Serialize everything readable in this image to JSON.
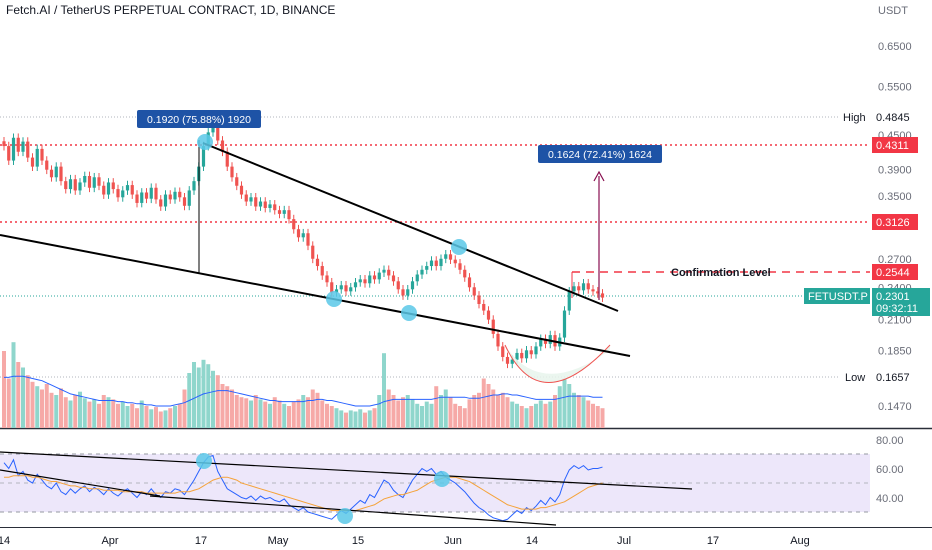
{
  "header": {
    "title": "Fetch.AI / TetherUS PERPETUAL CONTRACT, 1D, BINANCE",
    "currency": "USDT"
  },
  "colors": {
    "up": "#26a69a",
    "down": "#ef5350",
    "ma": "#2962ff",
    "rsi": "#2962ff",
    "rsi_ma": "#f5a33a",
    "level_red": "#f23645",
    "badge_blue": "#1e53a6",
    "rsi_band": "#ede7fa"
  },
  "chart_data": [
    {
      "type": "candlestick",
      "title": "Fetch.AI / TetherUS PERPETUAL CONTRACT, 1D, BINANCE",
      "y_scale": "log",
      "yticks": [
        "0.6500",
        "0.5500",
        "0.4500",
        "0.3900",
        "0.3500",
        "0.2700",
        "0.2400",
        "0.2100",
        "0.1850",
        "0.1470"
      ],
      "xticks": [
        "14",
        "Apr",
        "17",
        "May",
        "15",
        "Jun",
        "14",
        "Jul",
        "17",
        "Aug"
      ],
      "price_labels": {
        "high": {
          "label": "High",
          "value": "0.4845"
        },
        "low": {
          "label": "Low",
          "value": "0.1657"
        },
        "level1": "0.4311",
        "level2": "0.3126",
        "confirmation": "0.2544",
        "last": {
          "symbol": "FETUSDT.P",
          "value": "0.2301",
          "countdown": "09:32:11"
        }
      },
      "annotations": {
        "measure1": "0.1920 (75.88%) 1920",
        "measure2": "0.1624 (72.41%) 1624",
        "confirmation_label": "Confirmation Level"
      },
      "close": [
        0.43,
        0.405,
        0.445,
        0.42,
        0.438,
        0.41,
        0.395,
        0.425,
        0.405,
        0.39,
        0.378,
        0.395,
        0.372,
        0.36,
        0.375,
        0.358,
        0.37,
        0.38,
        0.362,
        0.378,
        0.365,
        0.352,
        0.37,
        0.36,
        0.348,
        0.358,
        0.366,
        0.352,
        0.34,
        0.355,
        0.346,
        0.362,
        0.345,
        0.335,
        0.352,
        0.345,
        0.356,
        0.348,
        0.336,
        0.358,
        0.372,
        0.395,
        0.43,
        0.455,
        0.47,
        0.44,
        0.42,
        0.395,
        0.378,
        0.365,
        0.352,
        0.342,
        0.348,
        0.335,
        0.342,
        0.333,
        0.338,
        0.33,
        0.325,
        0.33,
        0.318,
        0.305,
        0.295,
        0.3,
        0.285,
        0.27,
        0.262,
        0.252,
        0.245,
        0.235,
        0.238,
        0.242,
        0.236,
        0.24,
        0.245,
        0.248,
        0.244,
        0.252,
        0.248,
        0.255,
        0.258,
        0.252,
        0.246,
        0.238,
        0.232,
        0.238,
        0.246,
        0.253,
        0.258,
        0.262,
        0.268,
        0.262,
        0.27,
        0.275,
        0.269,
        0.265,
        0.258,
        0.25,
        0.24,
        0.232,
        0.224,
        0.218,
        0.21,
        0.198,
        0.188,
        0.18,
        0.175,
        0.178,
        0.183,
        0.179,
        0.185,
        0.182,
        0.188,
        0.194,
        0.19,
        0.197,
        0.188,
        0.195,
        0.218,
        0.236,
        0.241,
        0.237,
        0.244,
        0.238,
        0.236,
        0.234,
        0.23
      ],
      "volume": [
        0.7,
        0.45,
        0.78,
        0.6,
        0.55,
        0.48,
        0.42,
        0.38,
        0.35,
        0.4,
        0.32,
        0.3,
        0.36,
        0.28,
        0.25,
        0.3,
        0.33,
        0.27,
        0.24,
        0.26,
        0.22,
        0.3,
        0.28,
        0.26,
        0.22,
        0.24,
        0.2,
        0.22,
        0.18,
        0.25,
        0.2,
        0.17,
        0.19,
        0.15,
        0.16,
        0.18,
        0.2,
        0.22,
        0.35,
        0.5,
        0.6,
        0.55,
        0.62,
        0.58,
        0.52,
        0.48,
        0.4,
        0.38,
        0.35,
        0.3,
        0.28,
        0.27,
        0.25,
        0.3,
        0.26,
        0.24,
        0.22,
        0.28,
        0.25,
        0.22,
        0.2,
        0.24,
        0.26,
        0.3,
        0.28,
        0.35,
        0.32,
        0.25,
        0.22,
        0.2,
        0.18,
        0.16,
        0.14,
        0.16,
        0.15,
        0.17,
        0.14,
        0.16,
        0.18,
        0.3,
        0.68,
        0.35,
        0.3,
        0.25,
        0.28,
        0.3,
        0.26,
        0.22,
        0.2,
        0.24,
        0.22,
        0.38,
        0.3,
        0.35,
        0.28,
        0.22,
        0.2,
        0.18,
        0.26,
        0.3,
        0.32,
        0.45,
        0.4,
        0.35,
        0.3,
        0.32,
        0.28,
        0.24,
        0.22,
        0.2,
        0.18,
        0.2,
        0.22,
        0.25,
        0.22,
        0.24,
        0.3,
        0.38,
        0.45,
        0.4,
        0.32,
        0.3,
        0.28,
        0.25,
        0.22,
        0.2,
        0.18
      ],
      "volume_ma": [
        0.46,
        0.46,
        0.47,
        0.47,
        0.47,
        0.46,
        0.45,
        0.44,
        0.43,
        0.41,
        0.39,
        0.37,
        0.35,
        0.33,
        0.31,
        0.3,
        0.29,
        0.28,
        0.27,
        0.26,
        0.25,
        0.25,
        0.25,
        0.25,
        0.24,
        0.24,
        0.23,
        0.23,
        0.22,
        0.22,
        0.21,
        0.21,
        0.2,
        0.2,
        0.2,
        0.2,
        0.21,
        0.22,
        0.23,
        0.25,
        0.27,
        0.29,
        0.31,
        0.32,
        0.33,
        0.34,
        0.34,
        0.34,
        0.33,
        0.32,
        0.31,
        0.3,
        0.29,
        0.28,
        0.27,
        0.26,
        0.25,
        0.25,
        0.24,
        0.24,
        0.24,
        0.24,
        0.24,
        0.24,
        0.25,
        0.25,
        0.26,
        0.26,
        0.25,
        0.25,
        0.24,
        0.23,
        0.22,
        0.21,
        0.2,
        0.2,
        0.2,
        0.2,
        0.21,
        0.22,
        0.24,
        0.25,
        0.26,
        0.26,
        0.26,
        0.26,
        0.26,
        0.26,
        0.26,
        0.26,
        0.26,
        0.27,
        0.28,
        0.28,
        0.28,
        0.28,
        0.28,
        0.28,
        0.27,
        0.27,
        0.27,
        0.28,
        0.29,
        0.3,
        0.3,
        0.31,
        0.31,
        0.3,
        0.3,
        0.29,
        0.28,
        0.27,
        0.26,
        0.26,
        0.26,
        0.26,
        0.26,
        0.27,
        0.28,
        0.29,
        0.29,
        0.29,
        0.29,
        0.29,
        0.28,
        0.28,
        0.28
      ]
    },
    {
      "type": "line",
      "title": "",
      "y_scale": "linear",
      "ylim": [
        30,
        70
      ],
      "yticks": [
        "80.00",
        "60.00",
        "40.00"
      ],
      "series": [
        {
          "values": [
            64,
            60,
            66,
            55,
            58,
            52,
            50,
            56,
            52,
            48,
            46,
            50,
            44,
            42,
            46,
            43,
            46,
            48,
            44,
            47,
            45,
            42,
            46,
            43,
            41,
            44,
            46,
            43,
            40,
            44,
            42,
            46,
            42,
            40,
            44,
            43,
            46,
            45,
            42,
            47,
            52,
            58,
            64,
            68,
            69,
            58,
            52,
            46,
            44,
            42,
            40,
            39,
            41,
            38,
            41,
            39,
            40,
            38,
            37,
            39,
            35,
            33,
            31,
            33,
            30,
            29,
            28,
            27,
            26,
            25,
            28,
            31,
            29,
            32,
            35,
            38,
            36,
            42,
            40,
            46,
            52,
            50,
            45,
            42,
            40,
            46,
            52,
            56,
            60,
            58,
            60,
            56,
            58,
            54,
            52,
            50,
            47,
            44,
            40,
            36,
            33,
            31,
            28,
            26,
            25,
            24,
            25,
            28,
            31,
            29,
            33,
            31,
            34,
            38,
            35,
            40,
            37,
            42,
            52,
            59,
            62,
            60,
            62,
            59,
            60,
            60,
            61
          ]
        },
        {
          "values": [
            54,
            54,
            55,
            55,
            55,
            55,
            54,
            54,
            53,
            52,
            51,
            51,
            50,
            49,
            48,
            48,
            47,
            47,
            46,
            46,
            46,
            45,
            45,
            45,
            45,
            44,
            44,
            44,
            44,
            44,
            43,
            43,
            43,
            43,
            43,
            43,
            43,
            44,
            44,
            44,
            45,
            46,
            48,
            50,
            52,
            53,
            54,
            54,
            53,
            52,
            50,
            49,
            48,
            47,
            46,
            45,
            44,
            43,
            42,
            41,
            40,
            39,
            38,
            37,
            36,
            35,
            34,
            33,
            32,
            31,
            31,
            31,
            31,
            31,
            31,
            32,
            33,
            34,
            35,
            37,
            39,
            40,
            41,
            42,
            42,
            43,
            44,
            45,
            47,
            49,
            51,
            52,
            53,
            54,
            54,
            54,
            53,
            52,
            51,
            49,
            47,
            45,
            43,
            41,
            39,
            37,
            35,
            34,
            33,
            32,
            32,
            32,
            32,
            33,
            33,
            34,
            35,
            36,
            37,
            39,
            41,
            43,
            45,
            47,
            48,
            49,
            50
          ]
        }
      ],
      "xticks": [
        "14",
        "Apr",
        "17",
        "May",
        "15",
        "Jun",
        "14",
        "Jul",
        "17",
        "Aug"
      ]
    }
  ]
}
